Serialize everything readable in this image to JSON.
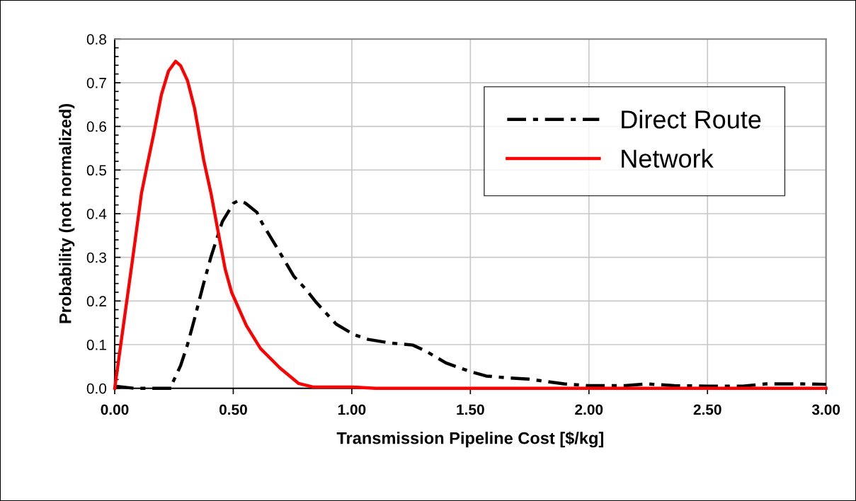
{
  "chart_data": {
    "type": "line",
    "xlabel": "Transmission Pipeline Cost [$/kg]",
    "ylabel": "Probability (not normalized)",
    "series": [
      {
        "name": "Direct Route",
        "color": "#000000",
        "line_style": "dashed",
        "x": [
          0.0,
          0.08,
          0.24,
          0.242,
          0.278,
          0.307,
          0.337,
          0.373,
          0.406,
          0.454,
          0.501,
          0.522,
          0.552,
          0.6,
          0.621,
          0.69,
          0.755,
          0.809,
          0.851,
          0.934,
          1.009,
          1.069,
          1.158,
          1.257,
          1.316,
          1.397,
          1.496,
          1.567,
          1.657,
          1.746,
          1.896,
          1.994,
          2.152,
          2.242,
          2.361,
          2.5,
          2.65,
          2.746,
          2.9,
          3.0
        ],
        "values": [
          0.005,
          0.0,
          0.0,
          0.01,
          0.052,
          0.1,
          0.16,
          0.236,
          0.301,
          0.382,
          0.424,
          0.43,
          0.424,
          0.403,
          0.379,
          0.317,
          0.257,
          0.225,
          0.196,
          0.147,
          0.123,
          0.112,
          0.104,
          0.099,
          0.084,
          0.058,
          0.039,
          0.028,
          0.024,
          0.021,
          0.01,
          0.006,
          0.006,
          0.01,
          0.006,
          0.005,
          0.005,
          0.01,
          0.01,
          0.009
        ]
      },
      {
        "name": "Network",
        "color": "#ff0000",
        "line_style": "solid",
        "x": [
          0.0,
          0.078,
          0.113,
          0.137,
          0.164,
          0.197,
          0.227,
          0.257,
          0.278,
          0.307,
          0.337,
          0.376,
          0.406,
          0.436,
          0.466,
          0.493,
          0.555,
          0.615,
          0.696,
          0.776,
          0.836,
          1.0,
          1.1,
          3.0
        ],
        "values": [
          0.0,
          0.306,
          0.447,
          0.511,
          0.581,
          0.673,
          0.727,
          0.749,
          0.739,
          0.705,
          0.641,
          0.521,
          0.447,
          0.359,
          0.273,
          0.22,
          0.144,
          0.091,
          0.047,
          0.011,
          0.003,
          0.003,
          0.0,
          0.0
        ]
      }
    ],
    "xlim": [
      0,
      3
    ],
    "xticks": [
      {
        "value": 0,
        "label": "0.00"
      },
      {
        "value": 0.5,
        "label": "0.50"
      },
      {
        "value": 1,
        "label": "1.00"
      },
      {
        "value": 1.5,
        "label": "1.50"
      },
      {
        "value": 2,
        "label": "2.00"
      },
      {
        "value": 2.5,
        "label": "2.50"
      },
      {
        "value": 3,
        "label": "3.00"
      }
    ],
    "ylim": [
      0,
      0.8
    ],
    "yticks": [
      {
        "value": 0,
        "label": "0.0"
      },
      {
        "value": 0.02,
        "label": null
      },
      {
        "value": 0.04,
        "label": null
      },
      {
        "value": 0.06,
        "label": null
      },
      {
        "value": 0.08,
        "label": null
      },
      {
        "value": 0.1,
        "label": "0.1"
      },
      {
        "value": 0.12,
        "label": null
      },
      {
        "value": 0.14,
        "label": null
      },
      {
        "value": 0.16,
        "label": null
      },
      {
        "value": 0.18,
        "label": null
      },
      {
        "value": 0.2,
        "label": "0.2"
      },
      {
        "value": 0.22,
        "label": null
      },
      {
        "value": 0.24,
        "label": null
      },
      {
        "value": 0.26,
        "label": null
      },
      {
        "value": 0.28,
        "label": null
      },
      {
        "value": 0.3,
        "label": "0.3"
      },
      {
        "value": 0.32,
        "label": null
      },
      {
        "value": 0.34,
        "label": null
      },
      {
        "value": 0.36,
        "label": null
      },
      {
        "value": 0.38,
        "label": null
      },
      {
        "value": 0.4,
        "label": "0.4"
      },
      {
        "value": 0.42,
        "label": null
      },
      {
        "value": 0.44,
        "label": null
      },
      {
        "value": 0.46,
        "label": null
      },
      {
        "value": 0.48,
        "label": null
      },
      {
        "value": 0.5,
        "label": "0.5"
      },
      {
        "value": 0.52,
        "label": null
      },
      {
        "value": 0.54,
        "label": null
      },
      {
        "value": 0.56,
        "label": null
      },
      {
        "value": 0.58,
        "label": null
      },
      {
        "value": 0.6,
        "label": "0.6"
      },
      {
        "value": 0.62,
        "label": null
      },
      {
        "value": 0.64,
        "label": null
      },
      {
        "value": 0.66,
        "label": null
      },
      {
        "value": 0.68,
        "label": null
      },
      {
        "value": 0.7,
        "label": "0.7"
      },
      {
        "value": 0.72,
        "label": null
      },
      {
        "value": 0.74,
        "label": null
      },
      {
        "value": 0.76,
        "label": null
      },
      {
        "value": 0.78,
        "label": null
      },
      {
        "value": 0.8,
        "label": "0.8"
      }
    ],
    "grid": true,
    "legend": "top right",
    "marker": "none"
  }
}
